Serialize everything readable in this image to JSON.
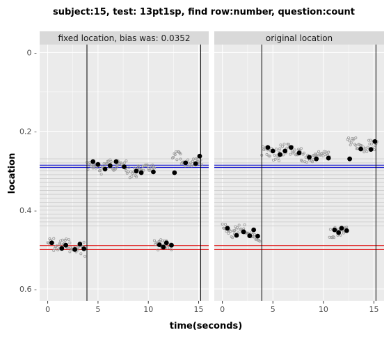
{
  "chart_data": {
    "type": "scatter",
    "title": "subject:15, test: 13pt1sp, find row:number, question:count",
    "xlabel": "time(seconds)",
    "ylabel": "location",
    "xlim": [
      -0.8,
      16
    ],
    "ylim": [
      0.63,
      -0.02
    ],
    "x_ticks": [
      0,
      5,
      10,
      15
    ],
    "y_ticks": [
      0,
      0.2,
      0.4,
      0.6
    ],
    "y_tick_labels": [
      "0 -",
      "0.2 -",
      "0.4 -",
      "0.6 -"
    ],
    "grid": true,
    "colors": {
      "panel_bg": "#ebebeb",
      "strip_bg": "#d9d9d9",
      "blue_line": "#0000cc",
      "red_line": "#dd0000",
      "reference_line": "#cfcfcf",
      "raw_point": "#9a9a9a",
      "fixation_point": "#000000"
    },
    "panels": [
      {
        "strip": "fixed location, bias was: 0.0352",
        "vlines": [
          3.9,
          15.2
        ],
        "blue_lines": [
          0.286,
          0.292
        ],
        "red_lines": [
          0.49,
          0.5
        ],
        "reference_lines": [
          0.27,
          0.28,
          0.29,
          0.3,
          0.31,
          0.32,
          0.33,
          0.34,
          0.35,
          0.36,
          0.37,
          0.38,
          0.39,
          0.4,
          0.41,
          0.42,
          0.43,
          0.44
        ],
        "fixations": [
          {
            "x": 0.4,
            "y": 0.483
          },
          {
            "x": 1.4,
            "y": 0.497
          },
          {
            "x": 1.8,
            "y": 0.489
          },
          {
            "x": 2.7,
            "y": 0.5
          },
          {
            "x": 3.2,
            "y": 0.486
          },
          {
            "x": 3.6,
            "y": 0.498
          },
          {
            "x": 4.5,
            "y": 0.277
          },
          {
            "x": 5.0,
            "y": 0.284
          },
          {
            "x": 5.7,
            "y": 0.296
          },
          {
            "x": 6.2,
            "y": 0.287
          },
          {
            "x": 6.8,
            "y": 0.277
          },
          {
            "x": 7.6,
            "y": 0.29
          },
          {
            "x": 8.8,
            "y": 0.301
          },
          {
            "x": 9.3,
            "y": 0.305
          },
          {
            "x": 10.5,
            "y": 0.303
          },
          {
            "x": 11.1,
            "y": 0.488
          },
          {
            "x": 11.5,
            "y": 0.494
          },
          {
            "x": 11.8,
            "y": 0.483
          },
          {
            "x": 12.3,
            "y": 0.489
          },
          {
            "x": 12.6,
            "y": 0.305
          },
          {
            "x": 13.7,
            "y": 0.28
          },
          {
            "x": 14.7,
            "y": 0.282
          },
          {
            "x": 15.1,
            "y": 0.263
          }
        ],
        "raw_clusters": [
          {
            "x0": 0.0,
            "x1": 0.6,
            "y0": 0.47,
            "y1": 0.495
          },
          {
            "x0": 0.6,
            "x1": 1.2,
            "y0": 0.485,
            "y1": 0.505
          },
          {
            "x0": 1.2,
            "x1": 2.2,
            "y0": 0.472,
            "y1": 0.497
          },
          {
            "x0": 2.2,
            "x1": 3.0,
            "y0": 0.492,
            "y1": 0.506
          },
          {
            "x0": 3.0,
            "x1": 3.7,
            "y0": 0.478,
            "y1": 0.52
          },
          {
            "x0": 3.9,
            "x1": 4.6,
            "y0": 0.272,
            "y1": 0.3
          },
          {
            "x0": 4.6,
            "x1": 5.6,
            "y0": 0.28,
            "y1": 0.31
          },
          {
            "x0": 5.6,
            "x1": 6.9,
            "y0": 0.268,
            "y1": 0.3
          },
          {
            "x0": 6.9,
            "x1": 7.8,
            "y0": 0.275,
            "y1": 0.295
          },
          {
            "x0": 7.8,
            "x1": 9.0,
            "y0": 0.29,
            "y1": 0.318
          },
          {
            "x0": 9.0,
            "x1": 10.6,
            "y0": 0.285,
            "y1": 0.302
          },
          {
            "x0": 10.6,
            "x1": 11.6,
            "y0": 0.475,
            "y1": 0.508
          },
          {
            "x0": 11.6,
            "x1": 12.3,
            "y0": 0.478,
            "y1": 0.502
          },
          {
            "x0": 12.4,
            "x1": 13.2,
            "y0": 0.25,
            "y1": 0.275
          },
          {
            "x0": 13.2,
            "x1": 14.3,
            "y0": 0.27,
            "y1": 0.29
          },
          {
            "x0": 14.4,
            "x1": 15.3,
            "y0": 0.258,
            "y1": 0.285
          }
        ]
      },
      {
        "strip": "original location",
        "vlines": [
          3.9,
          15.2
        ],
        "blue_lines": [
          0.286,
          0.292
        ],
        "red_lines": [
          0.49,
          0.5
        ],
        "reference_lines": [
          0.27,
          0.28,
          0.29,
          0.3,
          0.31,
          0.32,
          0.33,
          0.34,
          0.35,
          0.36,
          0.37,
          0.38,
          0.39,
          0.4,
          0.41,
          0.42,
          0.43,
          0.44
        ],
        "fixations": [
          {
            "x": 0.5,
            "y": 0.446
          },
          {
            "x": 1.4,
            "y": 0.464
          },
          {
            "x": 2.1,
            "y": 0.455
          },
          {
            "x": 2.7,
            "y": 0.465
          },
          {
            "x": 3.1,
            "y": 0.45
          },
          {
            "x": 3.5,
            "y": 0.466
          },
          {
            "x": 4.5,
            "y": 0.241
          },
          {
            "x": 5.0,
            "y": 0.25
          },
          {
            "x": 5.7,
            "y": 0.259
          },
          {
            "x": 6.2,
            "y": 0.25
          },
          {
            "x": 6.8,
            "y": 0.241
          },
          {
            "x": 7.6,
            "y": 0.255
          },
          {
            "x": 8.6,
            "y": 0.266
          },
          {
            "x": 9.3,
            "y": 0.27
          },
          {
            "x": 10.5,
            "y": 0.268
          },
          {
            "x": 11.1,
            "y": 0.45
          },
          {
            "x": 11.5,
            "y": 0.457
          },
          {
            "x": 11.8,
            "y": 0.446
          },
          {
            "x": 12.3,
            "y": 0.452
          },
          {
            "x": 12.6,
            "y": 0.27
          },
          {
            "x": 13.7,
            "y": 0.245
          },
          {
            "x": 14.7,
            "y": 0.246
          },
          {
            "x": 15.1,
            "y": 0.226
          }
        ],
        "raw_clusters": [
          {
            "x0": 0.0,
            "x1": 0.6,
            "y0": 0.435,
            "y1": 0.46
          },
          {
            "x0": 0.6,
            "x1": 1.2,
            "y0": 0.45,
            "y1": 0.47
          },
          {
            "x0": 1.2,
            "x1": 2.2,
            "y0": 0.437,
            "y1": 0.462
          },
          {
            "x0": 2.2,
            "x1": 3.0,
            "y0": 0.455,
            "y1": 0.47
          },
          {
            "x0": 3.0,
            "x1": 3.7,
            "y0": 0.445,
            "y1": 0.485
          },
          {
            "x0": 3.9,
            "x1": 4.6,
            "y0": 0.235,
            "y1": 0.262
          },
          {
            "x0": 4.6,
            "x1": 5.6,
            "y0": 0.243,
            "y1": 0.275
          },
          {
            "x0": 5.6,
            "x1": 6.9,
            "y0": 0.23,
            "y1": 0.262
          },
          {
            "x0": 6.9,
            "x1": 7.8,
            "y0": 0.238,
            "y1": 0.26
          },
          {
            "x0": 7.8,
            "x1": 9.0,
            "y0": 0.255,
            "y1": 0.282
          },
          {
            "x0": 9.0,
            "x1": 10.6,
            "y0": 0.25,
            "y1": 0.266
          },
          {
            "x0": 10.6,
            "x1": 11.6,
            "y0": 0.44,
            "y1": 0.47
          },
          {
            "x0": 11.6,
            "x1": 12.3,
            "y0": 0.443,
            "y1": 0.466
          },
          {
            "x0": 12.4,
            "x1": 13.2,
            "y0": 0.216,
            "y1": 0.24
          },
          {
            "x0": 13.2,
            "x1": 14.3,
            "y0": 0.233,
            "y1": 0.253
          },
          {
            "x0": 14.4,
            "x1": 15.3,
            "y0": 0.222,
            "y1": 0.248
          }
        ]
      }
    ]
  }
}
